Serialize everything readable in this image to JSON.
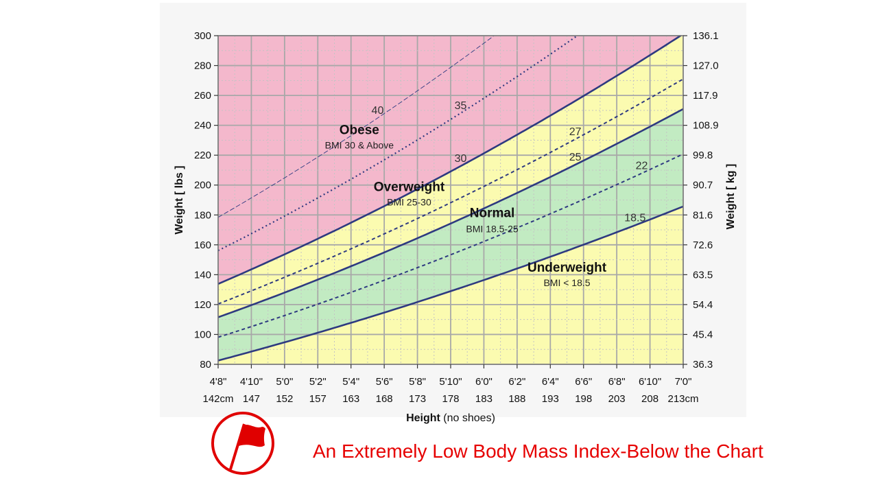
{
  "chart_data": {
    "type": "line",
    "xlabel": "Height",
    "xlabel_note": "(no shoes)",
    "ylabel_left": "Weight [ lbs ]",
    "ylabel_right": "Weight [ kg ]",
    "x_range_inches": [
      56,
      84
    ],
    "ylim_lbs": [
      80,
      300
    ],
    "grid": true,
    "x_ticks_ft": [
      "4'8\"",
      "4'10\"",
      "5'0\"",
      "5'2\"",
      "5'4\"",
      "5'6\"",
      "5'8\"",
      "5'10\"",
      "6'0\"",
      "6'2\"",
      "6'4\"",
      "6'6\"",
      "6'8\"",
      "6'10\"",
      "7'0\""
    ],
    "x_ticks_cm": [
      "142cm",
      "147",
      "152",
      "157",
      "163",
      "168",
      "173",
      "178",
      "183",
      "188",
      "193",
      "198",
      "203",
      "208",
      "213cm"
    ],
    "y_ticks_lbs": [
      "80",
      "100",
      "120",
      "140",
      "160",
      "180",
      "200",
      "220",
      "240",
      "260",
      "280",
      "300"
    ],
    "y_ticks_kg": [
      "36.3",
      "45.4",
      "54.4",
      "63.5",
      "72.6",
      "81.6",
      "90.7",
      "99.8",
      "108.9",
      "117.9",
      "127.0",
      "136.1"
    ],
    "series": [
      {
        "name": "40",
        "bmi": 40,
        "style": "thin-dashed",
        "label_at_height_in": 65.6
      },
      {
        "name": "35",
        "bmi": 35,
        "style": "dotted",
        "label_at_height_in": 70.6
      },
      {
        "name": "30",
        "bmi": 30,
        "style": "solid",
        "label_at_height_in": 70.6
      },
      {
        "name": "27",
        "bmi": 27,
        "style": "dashed",
        "label_at_height_in": 77.5
      },
      {
        "name": "25",
        "bmi": 25,
        "style": "solid",
        "label_at_height_in": 77.5
      },
      {
        "name": "22",
        "bmi": 22,
        "style": "dashed",
        "label_at_height_in": 81.5
      },
      {
        "name": "18.5",
        "bmi": 18.5,
        "style": "solid",
        "label_at_height_in": 81.1
      }
    ],
    "zones": [
      {
        "name": "Obese",
        "range": "BMI 30 & Above",
        "color": "#f4b8cc"
      },
      {
        "name": "Overweight",
        "range": "BMI 25-30",
        "color": "#fbfbb0"
      },
      {
        "name": "Normal",
        "range": "BMI 18.5-25",
        "color": "#c2ebc2"
      },
      {
        "name": "Underweight",
        "range": "BMI < 18.5",
        "color": "#fbfbb0"
      }
    ],
    "colors": {
      "line": "#2e3a80",
      "grid": "#a8a8a8",
      "grid_minor": "#c4c4c4"
    }
  },
  "caption": {
    "text": "An Extremely Low Body Mass Index-Below the Chart",
    "color": "#e60000"
  },
  "flag_icon": {
    "name": "red-flag-icon",
    "color": "#e00000"
  }
}
